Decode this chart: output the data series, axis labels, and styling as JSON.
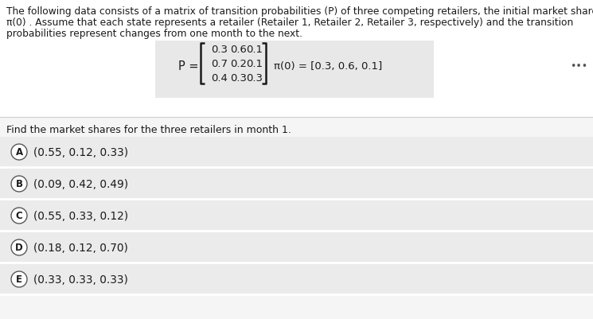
{
  "bg_color": "#f5f5f5",
  "page_bg": "#ffffff",
  "header_text_line1": "The following data consists of a matrix of transition probabilities (P) of three competing retailers, the initial market share",
  "header_text_line2": "π(0) . Assume that each state represents a retailer (Retailer 1, Retailer 2, Retailer 3, respectively) and the transition",
  "header_text_line3": "probabilities represent changes from one month to the next.",
  "matrix_rows": [
    [
      "0.3",
      "0.6",
      "0.1"
    ],
    [
      "0.7",
      "0.2",
      "0.1"
    ],
    [
      "0.4",
      "0.3",
      "0.3"
    ]
  ],
  "pi_label": "π(0) = [0.3, 0.6, 0.1]",
  "question_text": "Find the market shares for the three retailers in month 1.",
  "choices": [
    {
      "label": "A",
      "text": "(0.55, 0.12, 0.33)"
    },
    {
      "label": "B",
      "text": "(0.09, 0.42, 0.49)"
    },
    {
      "label": "C",
      "text": "(0.55, 0.33, 0.12)"
    },
    {
      "label": "D",
      "text": "(0.18, 0.12, 0.70)"
    },
    {
      "label": "E",
      "text": "(0.33, 0.33, 0.33)"
    }
  ],
  "dots": "•••",
  "font_size_header": 8.8,
  "font_size_matrix": 9.5,
  "font_size_choices": 9.8,
  "font_size_question": 9.0,
  "choice_bg": "#ebebeb",
  "sep_color": "#d0d0d0",
  "circle_edge_color": "#555555",
  "text_color": "#1a1a1a",
  "matrix_bg": "#e8e8e8",
  "dots_color": "#555555"
}
